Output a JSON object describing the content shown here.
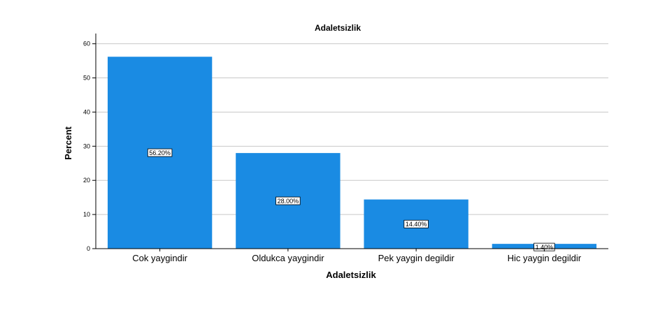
{
  "chart_data": {
    "type": "bar",
    "title": "Adaletsizlik",
    "xlabel": "Adaletsizlik",
    "ylabel": "Percent",
    "categories": [
      "Cok yaygindir",
      "Oldukca yaygindir",
      "Pek yaygin degildir",
      "Hic yaygin degildir"
    ],
    "values": [
      56.2,
      28.0,
      14.4,
      1.4
    ],
    "data_labels": [
      "56.20%",
      "28.00%",
      "14.40%",
      "1.40%"
    ],
    "ylim": [
      0,
      63
    ],
    "yticks": [
      0,
      10,
      20,
      30,
      40,
      50,
      60
    ],
    "grid": true,
    "bar_color": "#1a8be3",
    "grid_color": "#c8c8c8"
  }
}
